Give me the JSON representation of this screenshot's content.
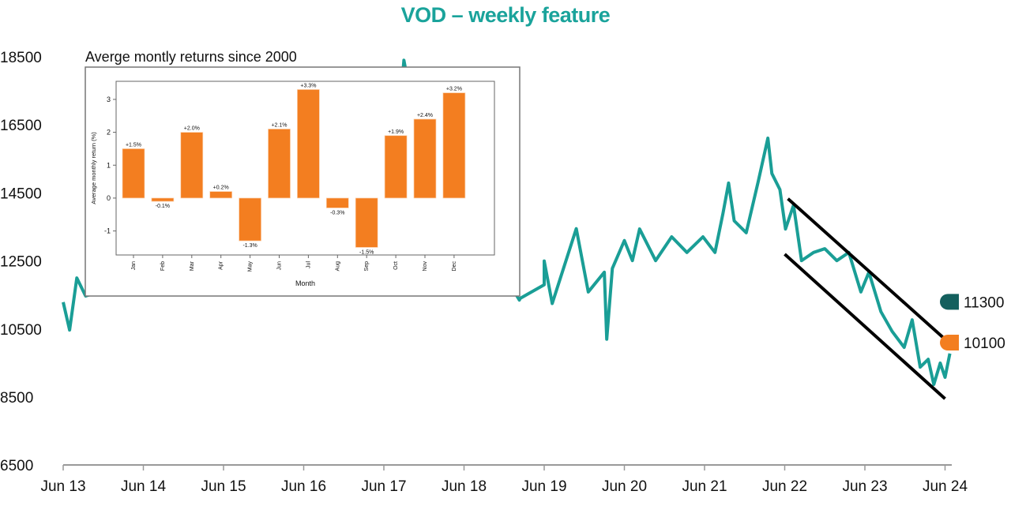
{
  "chart_data": [
    {
      "type": "line",
      "title": "VOD – weekly feature",
      "x_ticks": [
        "Jun 13",
        "Jun 14",
        "Jun 15",
        "Jun 16",
        "Jun 17",
        "Jun 18",
        "Jun 19",
        "Jun 20",
        "Jun 21",
        "Jun 22",
        "Jun 23",
        "Jun 24"
      ],
      "y_ticks": [
        6500,
        8500,
        10500,
        12500,
        14500,
        16500,
        18500
      ],
      "ylim": [
        6500,
        18500
      ],
      "x_unit": "years since Jun 2013",
      "series": [
        {
          "name": "VOD",
          "color": "#1a9e96",
          "points": [
            [
              0,
              11290
            ],
            [
              0.08,
              10470
            ],
            [
              0.17,
              12000
            ],
            [
              0.28,
              11470
            ],
            [
              0.6,
              11700
            ],
            [
              1.2,
              12100
            ],
            [
              1.8,
              11900
            ],
            [
              2.4,
              12300
            ],
            [
              3.0,
              12600
            ],
            [
              3.6,
              13400
            ],
            [
              4.0,
              15500
            ],
            [
              4.2,
              17000
            ],
            [
              4.25,
              18400
            ],
            [
              4.4,
              16500
            ],
            [
              4.9,
              14000
            ],
            [
              5.4,
              12500
            ],
            [
              6.0,
              11800
            ],
            [
              5.7,
              11400
            ],
            [
              5.69,
              11350
            ],
            [
              6.0,
              12500
            ],
            [
              6.1,
              11250
            ],
            [
              6.4,
              13450
            ],
            [
              6.55,
              11590
            ],
            [
              6.75,
              12170
            ],
            [
              6.78,
              10200
            ],
            [
              6.85,
              12280
            ],
            [
              7.0,
              13100
            ],
            [
              7.1,
              12510
            ],
            [
              7.19,
              13440
            ],
            [
              7.39,
              12510
            ],
            [
              7.59,
              13210
            ],
            [
              7.78,
              12750
            ],
            [
              7.98,
              13210
            ],
            [
              8.13,
              12750
            ],
            [
              8.23,
              13900
            ],
            [
              8.3,
              14790
            ],
            [
              8.37,
              13680
            ],
            [
              8.52,
              13330
            ],
            [
              8.67,
              14840
            ],
            [
              8.79,
              16110
            ],
            [
              8.84,
              15070
            ],
            [
              8.94,
              14600
            ],
            [
              9.01,
              13440
            ],
            [
              9.11,
              14140
            ],
            [
              9.21,
              12510
            ],
            [
              9.36,
              12750
            ],
            [
              9.5,
              12860
            ],
            [
              9.65,
              12510
            ],
            [
              9.8,
              12750
            ],
            [
              9.95,
              11590
            ],
            [
              10.05,
              12170
            ],
            [
              10.2,
              11010
            ],
            [
              10.34,
              10430
            ],
            [
              10.49,
              9960
            ],
            [
              10.59,
              10770
            ],
            [
              10.69,
              9380
            ],
            [
              10.79,
              9610
            ],
            [
              10.86,
              8870
            ],
            [
              10.94,
              9500
            ],
            [
              11.0,
              9080
            ],
            [
              11.06,
              9780
            ]
          ]
        }
      ],
      "channel": {
        "upper": [
          [
            9.04,
            14330
          ],
          [
            11.0,
            10200
          ]
        ],
        "lower": [
          [
            9.0,
            12700
          ],
          [
            11.0,
            8450
          ]
        ]
      },
      "markers": [
        {
          "value": 11300,
          "label": "11300",
          "color": "#14605e"
        },
        {
          "value": 10100,
          "label": "10100",
          "color": "#f37e20"
        }
      ]
    },
    {
      "type": "bar",
      "title": "Averge montly returns since 2000",
      "xlabel": "Month",
      "ylabel": "Average monthly return (%)",
      "categories": [
        "Jan",
        "Feb",
        "Mar",
        "Apr",
        "May",
        "Jun",
        "Jul",
        "Aug",
        "Sep",
        "Oct",
        "Nov",
        "Dec"
      ],
      "values": [
        1.5,
        -0.1,
        2.0,
        0.2,
        -1.3,
        2.1,
        3.3,
        -0.3,
        -1.5,
        1.9,
        2.4,
        3.2
      ],
      "data_labels": [
        "+1.5%",
        "-0.1%",
        "+2.0%",
        "+0.2%",
        "-1.3%",
        "+2.1%",
        "+3.3%",
        "-0.3%",
        "-1.5%",
        "+1.9%",
        "+2.4%",
        "+3.2%"
      ],
      "y_ticks": [
        -1,
        0,
        1,
        2,
        3
      ],
      "ylim": [
        -1.73,
        3.55
      ],
      "color": "#f37e20"
    }
  ]
}
